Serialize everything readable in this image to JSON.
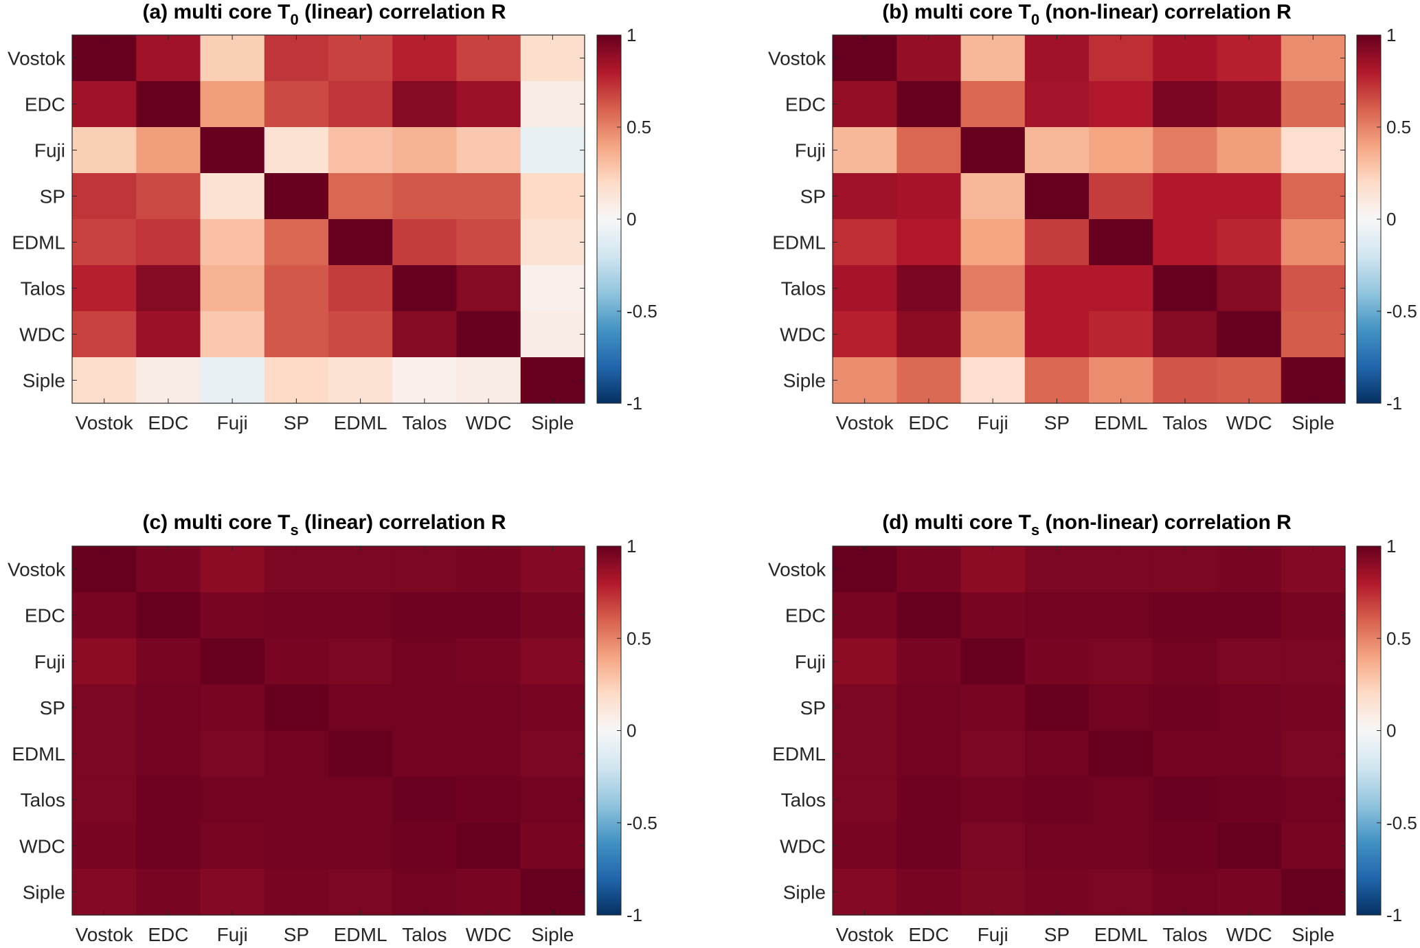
{
  "chart_data": [
    {
      "type": "heatmap",
      "panel": "a",
      "title": {
        "prefix": "(a) multi core T",
        "subscript": "0",
        "suffix": " (linear) correlation R"
      },
      "xlabels": [
        "Vostok",
        "EDC",
        "Fuji",
        "SP",
        "EDML",
        "Talos",
        "WDC",
        "Siple"
      ],
      "ylabels": [
        "Vostok",
        "EDC",
        "Fuji",
        "SP",
        "EDML",
        "Talos",
        "WDC",
        "Siple"
      ],
      "values": [
        [
          1.0,
          0.85,
          0.25,
          0.72,
          0.68,
          0.78,
          0.68,
          0.18
        ],
        [
          0.85,
          1.0,
          0.42,
          0.66,
          0.72,
          0.92,
          0.86,
          0.08
        ],
        [
          0.25,
          0.42,
          1.0,
          0.15,
          0.3,
          0.35,
          0.27,
          -0.08
        ],
        [
          0.72,
          0.66,
          0.15,
          1.0,
          0.58,
          0.62,
          0.62,
          0.2
        ],
        [
          0.68,
          0.72,
          0.3,
          0.58,
          1.0,
          0.7,
          0.66,
          0.15
        ],
        [
          0.78,
          0.92,
          0.35,
          0.62,
          0.7,
          1.0,
          0.92,
          0.05
        ],
        [
          0.68,
          0.86,
          0.27,
          0.62,
          0.66,
          0.92,
          1.0,
          0.08
        ],
        [
          0.18,
          0.08,
          -0.08,
          0.2,
          0.15,
          0.05,
          0.08,
          1.0
        ]
      ],
      "colorbar": {
        "range": [
          -1,
          1
        ],
        "ticks": [
          "1",
          "0.5",
          "0",
          "-0.5",
          "-1"
        ],
        "tick_values": [
          1,
          0.5,
          0,
          -0.5,
          -1
        ]
      }
    },
    {
      "type": "heatmap",
      "panel": "b",
      "title": {
        "prefix": "(b) multi core T",
        "subscript": "0",
        "suffix": " (non-linear) correlation R"
      },
      "xlabels": [
        "Vostok",
        "EDC",
        "Fuji",
        "SP",
        "EDML",
        "Talos",
        "WDC",
        "Siple"
      ],
      "ylabels": [
        "Vostok",
        "EDC",
        "Fuji",
        "SP",
        "EDML",
        "Talos",
        "WDC",
        "Siple"
      ],
      "values": [
        [
          1.0,
          0.88,
          0.33,
          0.85,
          0.74,
          0.83,
          0.78,
          0.47
        ],
        [
          0.88,
          1.0,
          0.58,
          0.84,
          0.8,
          0.95,
          0.9,
          0.57
        ],
        [
          0.33,
          0.58,
          1.0,
          0.33,
          0.4,
          0.52,
          0.42,
          0.17
        ],
        [
          0.85,
          0.83,
          0.33,
          1.0,
          0.7,
          0.8,
          0.8,
          0.58
        ],
        [
          0.74,
          0.8,
          0.4,
          0.7,
          1.0,
          0.8,
          0.76,
          0.47
        ],
        [
          0.83,
          0.95,
          0.52,
          0.8,
          0.8,
          1.0,
          0.92,
          0.63
        ],
        [
          0.78,
          0.9,
          0.42,
          0.8,
          0.76,
          0.92,
          1.0,
          0.61
        ],
        [
          0.47,
          0.57,
          0.17,
          0.58,
          0.47,
          0.63,
          0.61,
          1.0
        ]
      ],
      "colorbar": {
        "range": [
          -1,
          1
        ],
        "ticks": [
          "1",
          "0.5",
          "0",
          "-0.5",
          "-1"
        ],
        "tick_values": [
          1,
          0.5,
          0,
          -0.5,
          -1
        ]
      }
    },
    {
      "type": "heatmap",
      "panel": "c",
      "title": {
        "prefix": "(c) multi core T",
        "subscript": "s",
        "suffix": " (linear) correlation R"
      },
      "xlabels": [
        "Vostok",
        "EDC",
        "Fuji",
        "SP",
        "EDML",
        "Talos",
        "WDC",
        "Siple"
      ],
      "ylabels": [
        "Vostok",
        "EDC",
        "Fuji",
        "SP",
        "EDML",
        "Talos",
        "WDC",
        "Siple"
      ],
      "values": [
        [
          1.0,
          0.955,
          0.9,
          0.945,
          0.945,
          0.945,
          0.955,
          0.925
        ],
        [
          0.955,
          1.0,
          0.955,
          0.97,
          0.97,
          0.98,
          0.98,
          0.955
        ],
        [
          0.9,
          0.955,
          1.0,
          0.955,
          0.945,
          0.97,
          0.955,
          0.925
        ],
        [
          0.945,
          0.97,
          0.955,
          1.0,
          0.97,
          0.97,
          0.97,
          0.955
        ],
        [
          0.945,
          0.97,
          0.945,
          0.97,
          1.0,
          0.97,
          0.97,
          0.945
        ],
        [
          0.945,
          0.98,
          0.97,
          0.97,
          0.97,
          0.99,
          0.98,
          0.97
        ],
        [
          0.955,
          0.98,
          0.955,
          0.97,
          0.97,
          0.98,
          1.0,
          0.955
        ],
        [
          0.925,
          0.955,
          0.925,
          0.955,
          0.945,
          0.97,
          0.955,
          1.0
        ]
      ],
      "colorbar": {
        "range": [
          -1,
          1
        ],
        "ticks": [
          "1",
          "0.5",
          "0",
          "-0.5",
          "-1"
        ],
        "tick_values": [
          1,
          0.5,
          0,
          -0.5,
          -1
        ]
      }
    },
    {
      "type": "heatmap",
      "panel": "d",
      "title": {
        "prefix": "(d) multi core T",
        "subscript": "s",
        "suffix": " (non-linear) correlation R"
      },
      "xlabels": [
        "Vostok",
        "EDC",
        "Fuji",
        "SP",
        "EDML",
        "Talos",
        "WDC",
        "Siple"
      ],
      "ylabels": [
        "Vostok",
        "EDC",
        "Fuji",
        "SP",
        "EDML",
        "Talos",
        "WDC",
        "Siple"
      ],
      "values": [
        [
          1.0,
          0.955,
          0.9,
          0.945,
          0.945,
          0.945,
          0.955,
          0.925
        ],
        [
          0.955,
          1.0,
          0.955,
          0.97,
          0.97,
          0.98,
          0.98,
          0.955
        ],
        [
          0.9,
          0.955,
          1.0,
          0.955,
          0.945,
          0.97,
          0.945,
          0.945
        ],
        [
          0.945,
          0.97,
          0.955,
          1.0,
          0.97,
          0.98,
          0.97,
          0.955
        ],
        [
          0.945,
          0.97,
          0.945,
          0.97,
          1.0,
          0.97,
          0.97,
          0.945
        ],
        [
          0.945,
          0.98,
          0.97,
          0.98,
          0.97,
          0.99,
          0.98,
          0.97
        ],
        [
          0.955,
          0.98,
          0.945,
          0.97,
          0.97,
          0.98,
          1.0,
          0.955
        ],
        [
          0.925,
          0.955,
          0.935,
          0.955,
          0.945,
          0.97,
          0.955,
          1.0
        ]
      ],
      "colorbar": {
        "range": [
          -1,
          1
        ],
        "ticks": [
          "1",
          "0.5",
          "0",
          "-0.5",
          "-1"
        ],
        "tick_values": [
          1,
          0.5,
          0,
          -0.5,
          -1
        ]
      }
    }
  ],
  "colormap": {
    "name": "RdBu (reversed)",
    "stops": [
      "#053061",
      "#2166ac",
      "#4393c3",
      "#92c5de",
      "#d1e5f0",
      "#f7f7f7",
      "#fddbc7",
      "#f4a582",
      "#d6604d",
      "#b2182b",
      "#67001f"
    ]
  }
}
